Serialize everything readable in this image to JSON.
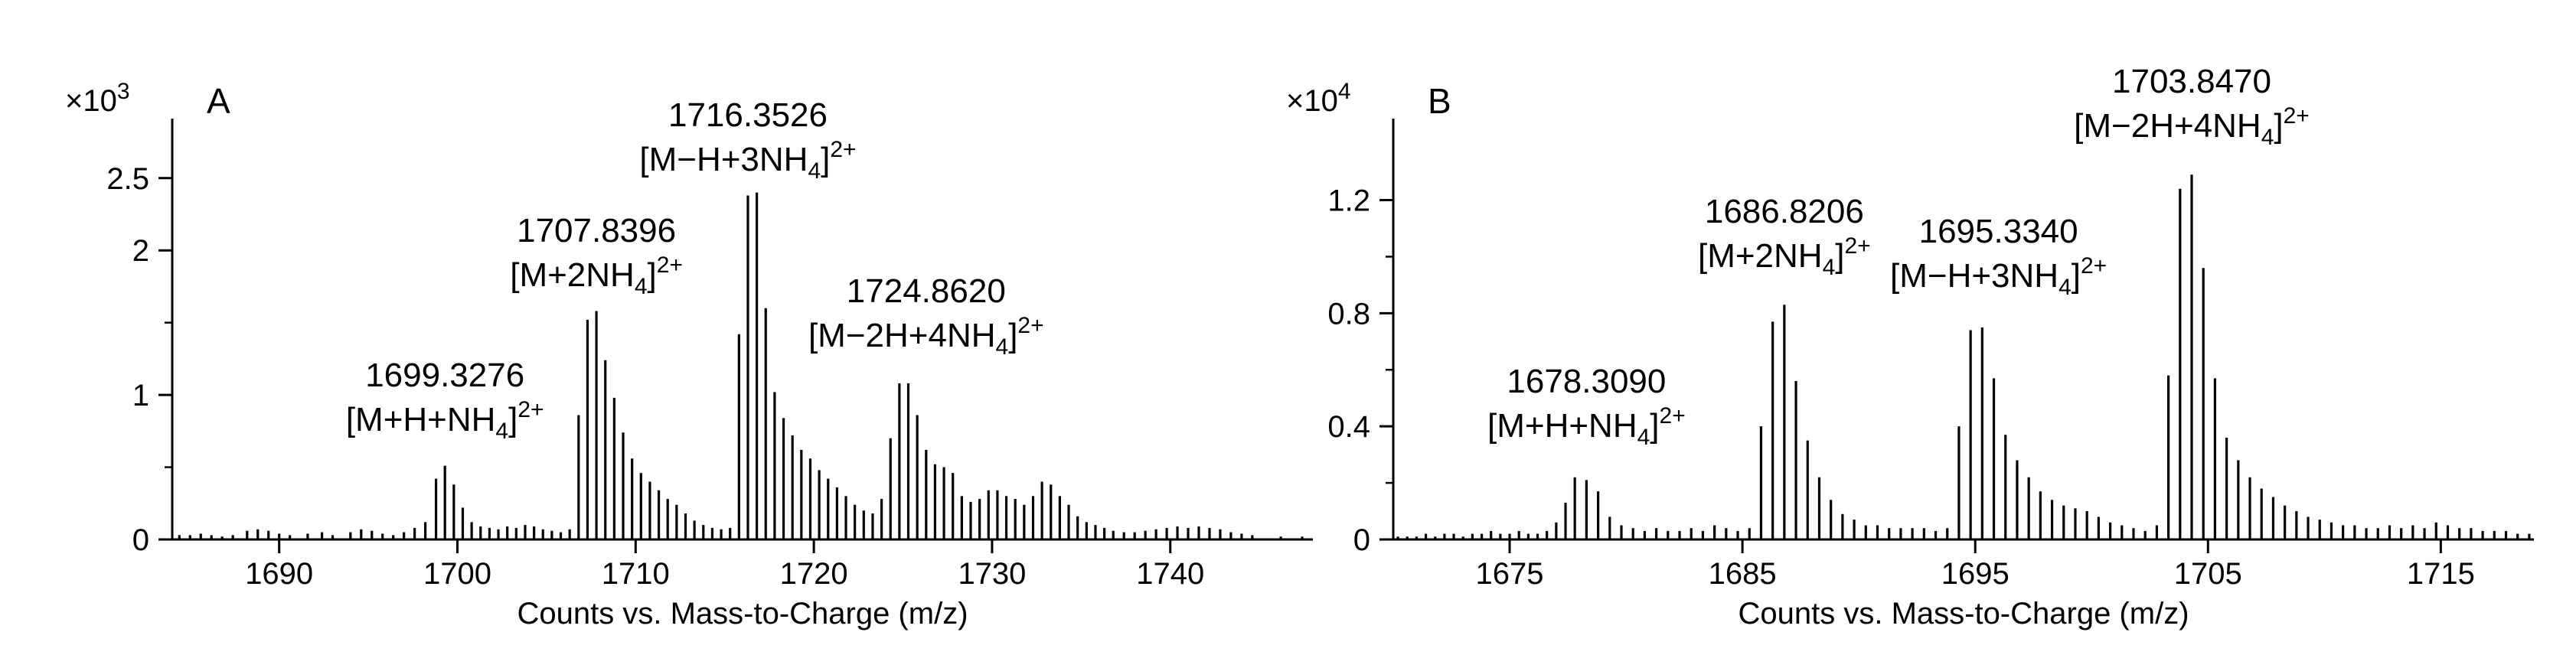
{
  "chart_data": [
    {
      "type": "mass-spectrum",
      "panel_label": "A",
      "xlabel": "Counts vs. Mass-to-Charge (m/z)",
      "ylabel": "",
      "y_multiplier": {
        "base": "×10",
        "exp": "3"
      },
      "xlim": [
        1684,
        1748
      ],
      "ylim": [
        0,
        2.7
      ],
      "x_ticks": [
        1690,
        1700,
        1710,
        1720,
        1730,
        1740
      ],
      "y_ticks": [
        {
          "value": 0,
          "label": "0"
        },
        {
          "value": 1,
          "label": "1"
        },
        {
          "value": 2,
          "label": "2"
        },
        {
          "value": 2.5,
          "label": "2.5"
        }
      ],
      "y_minor_ticks": [
        0.5,
        1.5
      ],
      "grid": false,
      "peaks": [
        [
          1684.4,
          0.03
        ],
        [
          1685.0,
          0.03
        ],
        [
          1685.6,
          0.04
        ],
        [
          1686.2,
          0.03
        ],
        [
          1686.8,
          0.02
        ],
        [
          1687.4,
          0.03
        ],
        [
          1688.2,
          0.06
        ],
        [
          1688.8,
          0.07
        ],
        [
          1689.4,
          0.06
        ],
        [
          1690.0,
          0.04
        ],
        [
          1690.6,
          0.03
        ],
        [
          1691.6,
          0.04
        ],
        [
          1692.4,
          0.05
        ],
        [
          1693.0,
          0.03
        ],
        [
          1694.0,
          0.05
        ],
        [
          1694.6,
          0.07
        ],
        [
          1695.2,
          0.06
        ],
        [
          1695.8,
          0.04
        ],
        [
          1696.4,
          0.03
        ],
        [
          1697.0,
          0.05
        ],
        [
          1697.6,
          0.08
        ],
        [
          1698.2,
          0.12
        ],
        [
          1698.8,
          0.42
        ],
        [
          1699.3,
          0.51
        ],
        [
          1699.8,
          0.38
        ],
        [
          1700.3,
          0.22
        ],
        [
          1700.8,
          0.12
        ],
        [
          1701.3,
          0.09
        ],
        [
          1701.8,
          0.08
        ],
        [
          1702.3,
          0.07
        ],
        [
          1702.8,
          0.09
        ],
        [
          1703.3,
          0.08
        ],
        [
          1703.8,
          0.1
        ],
        [
          1704.3,
          0.09
        ],
        [
          1704.8,
          0.07
        ],
        [
          1705.3,
          0.06
        ],
        [
          1705.8,
          0.05
        ],
        [
          1706.3,
          0.07
        ],
        [
          1706.8,
          0.86
        ],
        [
          1707.3,
          1.52
        ],
        [
          1707.8,
          1.58
        ],
        [
          1708.3,
          1.24
        ],
        [
          1708.8,
          0.98
        ],
        [
          1709.3,
          0.74
        ],
        [
          1709.8,
          0.56
        ],
        [
          1710.3,
          0.46
        ],
        [
          1710.8,
          0.4
        ],
        [
          1711.3,
          0.34
        ],
        [
          1711.8,
          0.28
        ],
        [
          1712.3,
          0.24
        ],
        [
          1712.8,
          0.18
        ],
        [
          1713.3,
          0.13
        ],
        [
          1713.8,
          0.1
        ],
        [
          1714.3,
          0.08
        ],
        [
          1714.8,
          0.07
        ],
        [
          1715.3,
          0.08
        ],
        [
          1715.8,
          1.42
        ],
        [
          1716.3,
          2.38
        ],
        [
          1716.8,
          2.4
        ],
        [
          1717.3,
          1.6
        ],
        [
          1717.8,
          1.02
        ],
        [
          1718.3,
          0.84
        ],
        [
          1718.8,
          0.72
        ],
        [
          1719.3,
          0.62
        ],
        [
          1719.8,
          0.56
        ],
        [
          1720.3,
          0.48
        ],
        [
          1720.8,
          0.42
        ],
        [
          1721.3,
          0.36
        ],
        [
          1721.8,
          0.3
        ],
        [
          1722.3,
          0.24
        ],
        [
          1722.8,
          0.2
        ],
        [
          1723.3,
          0.18
        ],
        [
          1723.8,
          0.28
        ],
        [
          1724.3,
          0.7
        ],
        [
          1724.8,
          1.08
        ],
        [
          1725.3,
          1.08
        ],
        [
          1725.8,
          0.86
        ],
        [
          1726.3,
          0.62
        ],
        [
          1726.8,
          0.52
        ],
        [
          1727.3,
          0.5
        ],
        [
          1727.8,
          0.46
        ],
        [
          1728.3,
          0.3
        ],
        [
          1728.8,
          0.26
        ],
        [
          1729.3,
          0.28
        ],
        [
          1729.8,
          0.34
        ],
        [
          1730.3,
          0.34
        ],
        [
          1730.8,
          0.3
        ],
        [
          1731.3,
          0.28
        ],
        [
          1731.8,
          0.24
        ],
        [
          1732.3,
          0.3
        ],
        [
          1732.8,
          0.4
        ],
        [
          1733.3,
          0.38
        ],
        [
          1733.8,
          0.3
        ],
        [
          1734.3,
          0.24
        ],
        [
          1734.8,
          0.16
        ],
        [
          1735.3,
          0.12
        ],
        [
          1735.8,
          0.1
        ],
        [
          1736.3,
          0.08
        ],
        [
          1736.8,
          0.06
        ],
        [
          1737.4,
          0.05
        ],
        [
          1738.0,
          0.05
        ],
        [
          1738.6,
          0.06
        ],
        [
          1739.2,
          0.07
        ],
        [
          1739.8,
          0.08
        ],
        [
          1740.4,
          0.09
        ],
        [
          1741.0,
          0.08
        ],
        [
          1741.6,
          0.09
        ],
        [
          1742.2,
          0.08
        ],
        [
          1742.8,
          0.07
        ],
        [
          1743.4,
          0.05
        ],
        [
          1744.0,
          0.04
        ],
        [
          1744.6,
          0.03
        ],
        [
          1746.2,
          0.02
        ],
        [
          1747.4,
          0.02
        ]
      ],
      "annotations": [
        {
          "mz": "1699.3276",
          "ion": "[M+H+NH",
          "sub": "4",
          "tail": "]",
          "sup": "2+",
          "x": 1699.3,
          "y_top": 1.06
        },
        {
          "mz": "1707.8396",
          "ion": "[M+2NH",
          "sub": "4",
          "tail": "]",
          "sup": "2+",
          "x": 1707.8,
          "y_top": 2.06
        },
        {
          "mz": "1716.3526",
          "ion": "[M−H+3NH",
          "sub": "4",
          "tail": "]",
          "sup": "2+",
          "x": 1716.3,
          "y_top": 2.86
        },
        {
          "mz": "1724.8620",
          "ion": "[M−2H+4NH",
          "sub": "4",
          "tail": "]",
          "sup": "2+",
          "x": 1726.3,
          "y_top": 1.64
        }
      ]
    },
    {
      "type": "mass-spectrum",
      "panel_label": "B",
      "xlabel": "Counts vs. Mass-to-Charge (m/z)",
      "ylabel": "",
      "y_multiplier": {
        "base": "×10",
        "exp": "4"
      },
      "xlim": [
        1670,
        1719
      ],
      "ylim": [
        0,
        1.38
      ],
      "x_ticks": [
        1675,
        1685,
        1695,
        1705,
        1715
      ],
      "y_ticks": [
        {
          "value": 0,
          "label": "0"
        },
        {
          "value": 0.4,
          "label": "0.4"
        },
        {
          "value": 0.8,
          "label": "0.8"
        },
        {
          "value": 1.2,
          "label": "1.2"
        }
      ],
      "y_minor_ticks": [
        0.2,
        0.6,
        1.0
      ],
      "grid": false,
      "peaks": [
        [
          1670.2,
          0.01
        ],
        [
          1670.6,
          0.01
        ],
        [
          1671.0,
          0.01
        ],
        [
          1671.4,
          0.02
        ],
        [
          1671.8,
          0.01
        ],
        [
          1672.2,
          0.02
        ],
        [
          1672.6,
          0.02
        ],
        [
          1673.0,
          0.01
        ],
        [
          1673.4,
          0.02
        ],
        [
          1673.8,
          0.02
        ],
        [
          1674.2,
          0.03
        ],
        [
          1674.6,
          0.02
        ],
        [
          1675.0,
          0.02
        ],
        [
          1675.4,
          0.03
        ],
        [
          1675.8,
          0.02
        ],
        [
          1676.2,
          0.02
        ],
        [
          1676.6,
          0.03
        ],
        [
          1677.0,
          0.06
        ],
        [
          1677.4,
          0.13
        ],
        [
          1677.8,
          0.22
        ],
        [
          1678.3,
          0.21
        ],
        [
          1678.8,
          0.17
        ],
        [
          1679.3,
          0.08
        ],
        [
          1679.8,
          0.05
        ],
        [
          1680.3,
          0.04
        ],
        [
          1680.8,
          0.03
        ],
        [
          1681.3,
          0.04
        ],
        [
          1681.8,
          0.03
        ],
        [
          1682.3,
          0.03
        ],
        [
          1682.8,
          0.04
        ],
        [
          1683.3,
          0.03
        ],
        [
          1683.8,
          0.05
        ],
        [
          1684.3,
          0.04
        ],
        [
          1684.8,
          0.03
        ],
        [
          1685.3,
          0.04
        ],
        [
          1685.8,
          0.4
        ],
        [
          1686.3,
          0.77
        ],
        [
          1686.8,
          0.83
        ],
        [
          1687.3,
          0.56
        ],
        [
          1687.8,
          0.35
        ],
        [
          1688.3,
          0.22
        ],
        [
          1688.8,
          0.14
        ],
        [
          1689.3,
          0.09
        ],
        [
          1689.8,
          0.07
        ],
        [
          1690.3,
          0.05
        ],
        [
          1690.8,
          0.05
        ],
        [
          1691.3,
          0.04
        ],
        [
          1691.8,
          0.04
        ],
        [
          1692.3,
          0.04
        ],
        [
          1692.8,
          0.04
        ],
        [
          1693.3,
          0.03
        ],
        [
          1693.8,
          0.04
        ],
        [
          1694.3,
          0.4
        ],
        [
          1694.8,
          0.74
        ],
        [
          1695.3,
          0.75
        ],
        [
          1695.8,
          0.57
        ],
        [
          1696.3,
          0.37
        ],
        [
          1696.8,
          0.28
        ],
        [
          1697.3,
          0.22
        ],
        [
          1697.8,
          0.17
        ],
        [
          1698.3,
          0.14
        ],
        [
          1698.8,
          0.12
        ],
        [
          1699.3,
          0.11
        ],
        [
          1699.8,
          0.1
        ],
        [
          1700.3,
          0.08
        ],
        [
          1700.8,
          0.06
        ],
        [
          1701.3,
          0.05
        ],
        [
          1701.8,
          0.04
        ],
        [
          1702.3,
          0.03
        ],
        [
          1702.8,
          0.05
        ],
        [
          1703.3,
          0.58
        ],
        [
          1703.8,
          1.24
        ],
        [
          1704.3,
          1.29
        ],
        [
          1704.8,
          0.96
        ],
        [
          1705.3,
          0.57
        ],
        [
          1705.8,
          0.36
        ],
        [
          1706.3,
          0.28
        ],
        [
          1706.8,
          0.22
        ],
        [
          1707.3,
          0.18
        ],
        [
          1707.8,
          0.15
        ],
        [
          1708.3,
          0.12
        ],
        [
          1708.8,
          0.1
        ],
        [
          1709.3,
          0.08
        ],
        [
          1709.8,
          0.07
        ],
        [
          1710.3,
          0.06
        ],
        [
          1710.8,
          0.05
        ],
        [
          1711.3,
          0.05
        ],
        [
          1711.8,
          0.04
        ],
        [
          1712.3,
          0.04
        ],
        [
          1712.8,
          0.05
        ],
        [
          1713.3,
          0.04
        ],
        [
          1713.8,
          0.05
        ],
        [
          1714.3,
          0.04
        ],
        [
          1714.8,
          0.06
        ],
        [
          1715.3,
          0.05
        ],
        [
          1715.8,
          0.04
        ],
        [
          1716.3,
          0.04
        ],
        [
          1716.8,
          0.03
        ],
        [
          1717.3,
          0.03
        ],
        [
          1717.8,
          0.03
        ],
        [
          1718.3,
          0.02
        ],
        [
          1718.8,
          0.02
        ]
      ],
      "annotations": [
        {
          "mz": "1678.3090",
          "ion": "[M+H+NH",
          "sub": "4",
          "tail": "]",
          "sup": "2+",
          "x": 1678.3,
          "y_top": 0.52
        },
        {
          "mz": "1686.8206",
          "ion": "[M+2NH",
          "sub": "4",
          "tail": "]",
          "sup": "2+",
          "x": 1686.8,
          "y_top": 1.12
        },
        {
          "mz": "1695.3340",
          "ion": "[M−H+3NH",
          "sub": "4",
          "tail": "]",
          "sup": "2+",
          "x": 1696.0,
          "y_top": 1.05
        },
        {
          "mz": "1703.8470",
          "ion": "[M−2H+4NH",
          "sub": "4",
          "tail": "]",
          "sup": "2+",
          "x": 1704.3,
          "y_top": 1.58
        }
      ]
    }
  ]
}
